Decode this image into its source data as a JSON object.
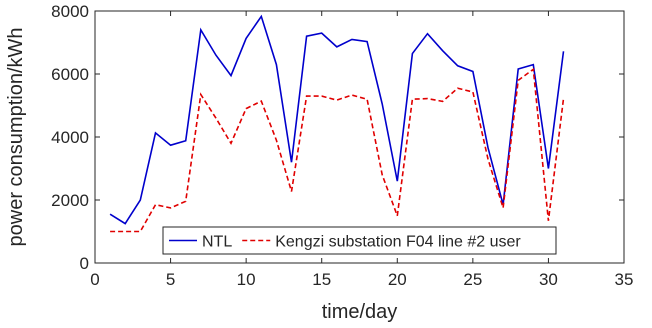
{
  "chart_data": {
    "type": "line",
    "title": "",
    "xlabel": "time/day",
    "ylabel": "power consumption/kWh",
    "xlim": [
      0,
      35
    ],
    "ylim": [
      0,
      8000
    ],
    "xticks": [
      0,
      5,
      10,
      15,
      20,
      25,
      30,
      35
    ],
    "yticks": [
      0,
      2000,
      4000,
      6000,
      8000
    ],
    "grid": false,
    "legend": {
      "position": "bottom-center"
    },
    "x": [
      1,
      2,
      3,
      4,
      5,
      6,
      7,
      8,
      9,
      10,
      11,
      12,
      13,
      14,
      15,
      16,
      17,
      18,
      19,
      20,
      21,
      22,
      23,
      24,
      25,
      26,
      27,
      28,
      29,
      30,
      31
    ],
    "series": [
      {
        "name": "NTL",
        "color": "#0000cc",
        "style": "solid",
        "values": [
          1550,
          1250,
          2000,
          4130,
          3740,
          3880,
          7400,
          6600,
          5950,
          7130,
          7830,
          6300,
          3200,
          7200,
          7300,
          6860,
          7100,
          7030,
          5050,
          2600,
          6650,
          7280,
          6740,
          6260,
          6080,
          3660,
          1850,
          6160,
          6300,
          3000,
          6720
        ]
      },
      {
        "name": "Kengzi substation F04 line #2 user",
        "color": "#e00000",
        "style": "dashed",
        "values": [
          1000,
          1000,
          1000,
          1850,
          1750,
          1960,
          5350,
          4600,
          3800,
          4900,
          5140,
          3900,
          2270,
          5300,
          5300,
          5170,
          5330,
          5200,
          2800,
          1500,
          5200,
          5220,
          5130,
          5550,
          5430,
          3300,
          1750,
          5800,
          6150,
          1340,
          5220
        ]
      }
    ]
  }
}
